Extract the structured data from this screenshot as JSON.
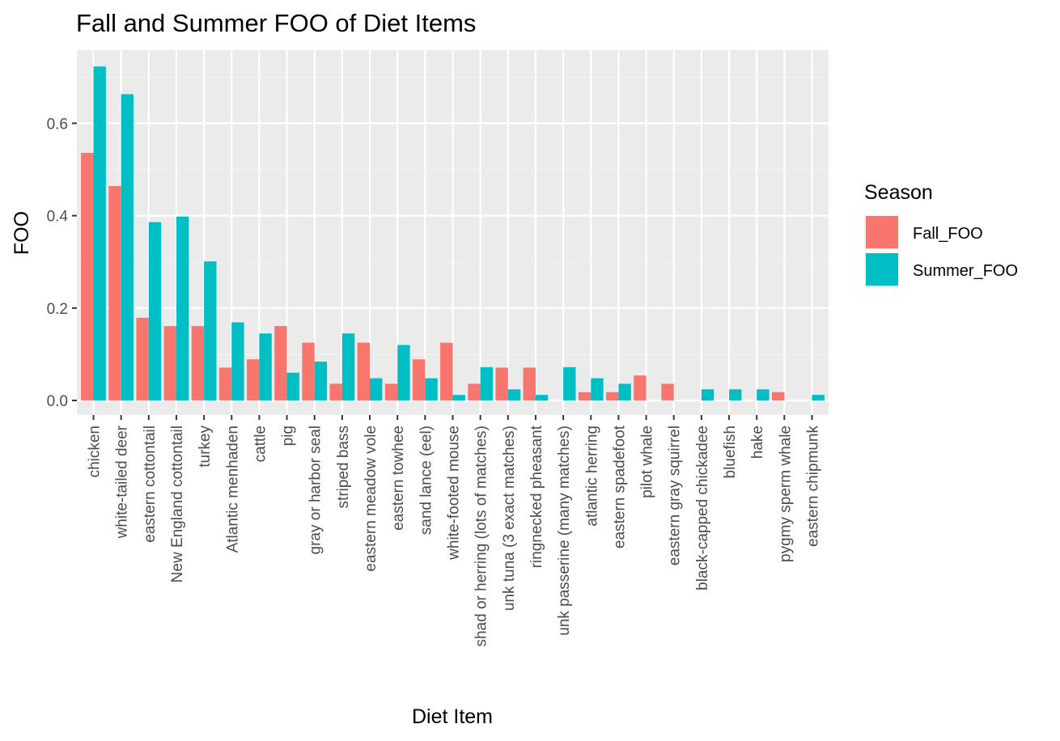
{
  "chart_data": {
    "type": "bar",
    "title": "Fall and Summer FOO of Diet Items",
    "xlabel": "Diet Item",
    "ylabel": "FOO",
    "ylim": [
      -0.03,
      0.76
    ],
    "yticks": [
      0.0,
      0.2,
      0.4,
      0.6
    ],
    "ytick_labels": [
      "0.0",
      "0.2",
      "0.4",
      "0.6"
    ],
    "grid": true,
    "legend": {
      "title": "Season",
      "position": "right"
    },
    "categories": [
      "chicken",
      "white-tailed deer",
      "eastern cottontail",
      "New England cottontail",
      "turkey",
      "Atlantic menhaden",
      "cattle",
      "pig",
      "gray or harbor seal",
      "striped bass",
      "eastern meadow vole",
      "eastern towhee",
      "sand lance (eel)",
      "white-footed mouse",
      "shad or herring (lots of matches)",
      "unk tuna (3 exact matches)",
      "ringnecked pheasant",
      "unk passerine (many matches)",
      "atlantic herring",
      "eastern spadefoot",
      "pilot whale",
      "eastern gray squirrel",
      "black-capped chickadee",
      "bluefish",
      "hake",
      "pygmy sperm whale",
      "eastern chipmunk"
    ],
    "series": [
      {
        "name": "Fall_FOO",
        "color": "#F8766D",
        "values": [
          0.536,
          0.464,
          0.179,
          0.161,
          0.161,
          0.071,
          0.089,
          0.161,
          0.125,
          0.036,
          0.125,
          0.036,
          0.089,
          0.125,
          0.036,
          0.071,
          0.071,
          0.0,
          0.018,
          0.018,
          0.054,
          0.036,
          0.0,
          0.0,
          0.0,
          0.018,
          0.0
        ]
      },
      {
        "name": "Summer_FOO",
        "color": "#00BFC4",
        "values": [
          0.723,
          0.663,
          0.386,
          0.398,
          0.301,
          0.169,
          0.145,
          0.06,
          0.084,
          0.145,
          0.048,
          0.12,
          0.048,
          0.012,
          0.072,
          0.024,
          0.012,
          0.072,
          0.048,
          0.036,
          0.0,
          0.0,
          0.024,
          0.024,
          0.024,
          0.0,
          0.012
        ]
      }
    ]
  },
  "colors": {
    "panel_background": "#EBEBEB",
    "grid_major": "#FFFFFF",
    "grid_minor": "#F5F5F5",
    "tick_color": "#333333",
    "tick_label": "#4D4D4D"
  }
}
